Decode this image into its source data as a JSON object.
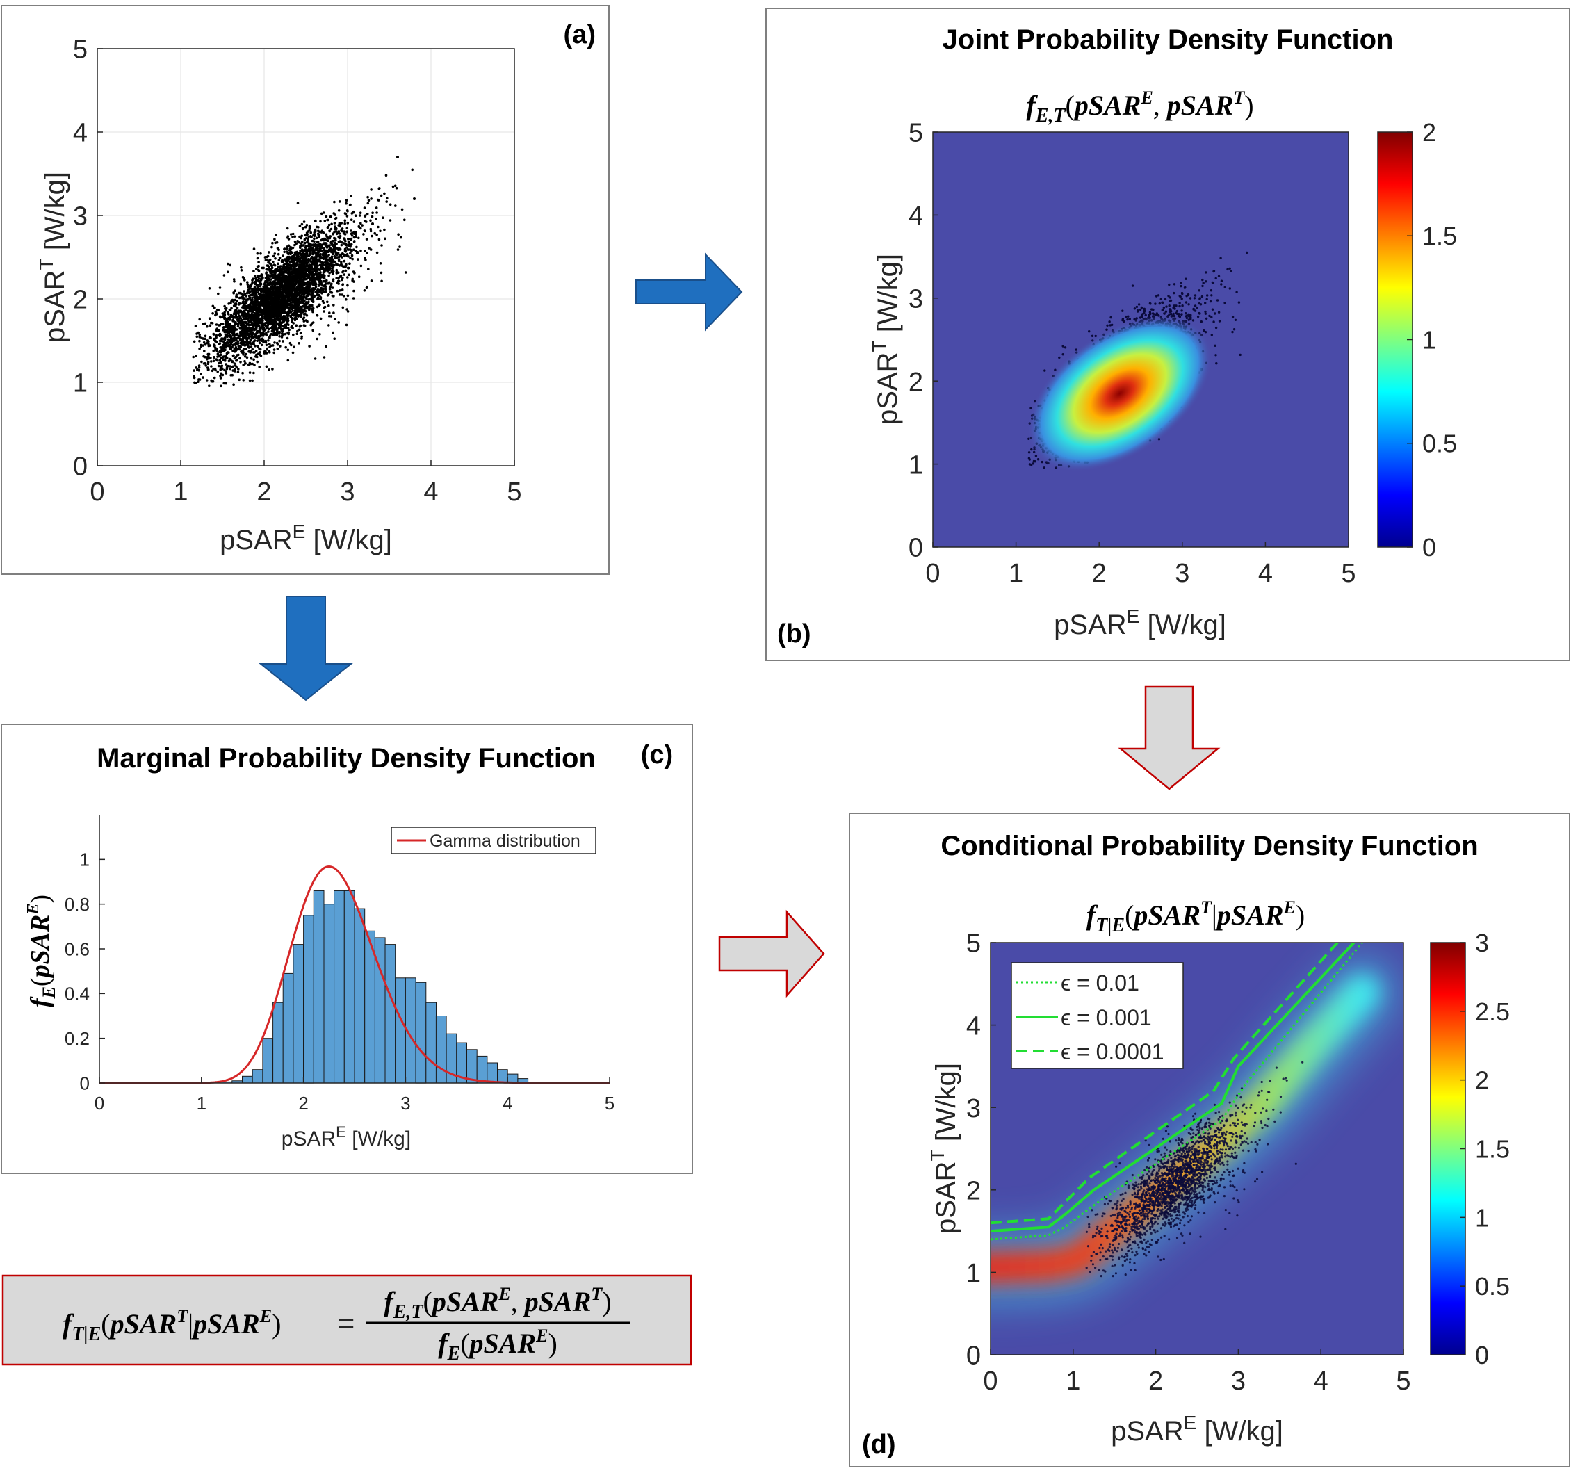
{
  "panel_a": {
    "label": "(a)",
    "xlabel_base": "pSAR",
    "xlabel_sup": "E",
    "xlabel_unit": " [W/kg]",
    "ylabel_base": "pSAR",
    "ylabel_sup": "T",
    "ylabel_unit": " [W/kg]"
  },
  "panel_b": {
    "label": "(b)",
    "title": "Joint Probability Density Function",
    "formula": {
      "f": "f",
      "sub": "E,T",
      "open": "(",
      "a": "pSAR",
      "asup": "E",
      "comma": ", ",
      "b": "pSAR",
      "bsup": "T",
      "close": ")"
    },
    "xlabel_base": "pSAR",
    "xlabel_sup": "E",
    "xlabel_unit": " [W/kg]",
    "ylabel_base": "pSAR",
    "ylabel_sup": "T",
    "ylabel_unit": " [W/kg]"
  },
  "panel_c": {
    "label": "(c)",
    "title": "Marginal Probability Density Function",
    "ylabel": {
      "f": "f",
      "sub": "E",
      "open": "(",
      "a": "pSAR",
      "asup": "E",
      "close": ")"
    },
    "xlabel_base": "pSAR",
    "xlabel_sup": "E",
    "xlabel_unit": " [W/kg]",
    "legend": "Gamma distribution"
  },
  "panel_d": {
    "label": "(d)",
    "title": "Conditional Probability Density Function",
    "formula": {
      "f": "f",
      "sub": "T|E",
      "open": "(",
      "a": "pSAR",
      "asup": "T",
      "bar": "|",
      "b": "pSAR",
      "bsup": "E",
      "close": ")"
    },
    "xlabel_base": "pSAR",
    "xlabel_sup": "E",
    "xlabel_unit": " [W/kg]",
    "ylabel_base": "pSAR",
    "ylabel_sup": "T",
    "ylabel_unit": " [W/kg]",
    "legend": [
      {
        "label": "ϵ = 0.01",
        "style": "dotted"
      },
      {
        "label": "ϵ = 0.001",
        "style": "solid"
      },
      {
        "label": "ϵ = 0.0001",
        "style": "dashed"
      }
    ]
  },
  "equation": {
    "lhs_f": "f",
    "lhs_sub": "T|E",
    "lhs_open": "(",
    "lhs_a": "pSAR",
    "lhs_asup": "T",
    "lhs_bar": "|",
    "lhs_b": "pSAR",
    "lhs_bsup": "E",
    "lhs_close": ")",
    "eq": "=",
    "num_f": "f",
    "num_sub": "E,T",
    "num_open": "(",
    "num_a": "pSAR",
    "num_asup": "E",
    "num_comma": ", ",
    "num_b": "pSAR",
    "num_bsup": "T",
    "num_close": ")",
    "den_f": "f",
    "den_sub": "E",
    "den_open": "(",
    "den_a": "pSAR",
    "den_asup": "E",
    "den_close": ")"
  },
  "colors": {
    "arrow_blue": "#1f6fbf",
    "arrow_gray": "#d9d9d9",
    "arrow_red_outline": "#c00000",
    "bar_fill": "#5a9fd4",
    "gamma_line": "#d62728",
    "contour_green": "#22dd33",
    "heatmap_bg": "#4a4ba8"
  },
  "chart_data": [
    {
      "id": "a",
      "type": "scatter",
      "title": "",
      "xlim": [
        0,
        5
      ],
      "ylim": [
        0,
        5
      ],
      "xticks": [
        0,
        1,
        2,
        3,
        4,
        5
      ],
      "yticks": [
        0,
        1,
        2,
        3,
        4,
        5
      ],
      "grid": true,
      "x": [
        2.1,
        1.8,
        2.5,
        2.3,
        1.6,
        2.0,
        2.9,
        3.3,
        3.6,
        1.4,
        2.7,
        3.1,
        3.8,
        1.2,
        2.2
      ],
      "y": [
        2.0,
        1.7,
        2.3,
        2.1,
        1.5,
        1.9,
        2.6,
        2.9,
        3.7,
        1.3,
        2.4,
        2.8,
        3.2,
        1.15,
        2.2
      ]
    },
    {
      "id": "b",
      "type": "heatmap",
      "xlim": [
        0,
        5
      ],
      "ylim": [
        0,
        5
      ],
      "xticks": [
        0,
        1,
        2,
        3,
        4,
        5
      ],
      "yticks": [
        0,
        1,
        2,
        3,
        4,
        5
      ],
      "colorbar_ticks": [
        0,
        0.5,
        1,
        1.5,
        2
      ],
      "colorbar_range": [
        0,
        2
      ],
      "peak": {
        "x": 2.05,
        "y": 1.85,
        "value": 2
      }
    },
    {
      "id": "c",
      "type": "bar",
      "xlim": [
        0,
        5
      ],
      "ylim": [
        0,
        1.2
      ],
      "xticks": [
        0,
        1,
        2,
        3,
        4,
        5
      ],
      "yticks": [
        0,
        0.2,
        0.4,
        0.6,
        0.8,
        1
      ],
      "bin_width": 0.1,
      "bin_start": 1.2,
      "values": [
        0.005,
        0.01,
        0.03,
        0.06,
        0.2,
        0.36,
        0.49,
        0.62,
        0.75,
        0.86,
        0.8,
        0.86,
        0.86,
        0.78,
        0.68,
        0.65,
        0.62,
        0.47,
        0.47,
        0.45,
        0.36,
        0.3,
        0.22,
        0.18,
        0.15,
        0.12,
        0.09,
        0.06,
        0.04,
        0.02
      ],
      "series": [
        {
          "name": "Gamma distribution",
          "shape": 31,
          "scale": 0.075
        }
      ]
    },
    {
      "id": "d",
      "type": "heatmap",
      "xlim": [
        0,
        5
      ],
      "ylim": [
        0,
        5
      ],
      "xticks": [
        0,
        1,
        2,
        3,
        4,
        5
      ],
      "yticks": [
        0,
        1,
        2,
        3,
        4,
        5
      ],
      "colorbar_ticks": [
        0,
        0.5,
        1,
        1.5,
        2,
        2.5,
        3
      ],
      "colorbar_range": [
        0,
        3
      ],
      "series": [
        {
          "name": "ϵ = 0.01",
          "style": "dotted",
          "x": [
            0,
            0.7,
            0.9,
            1.3,
            2.8,
            3.1,
            4.5
          ],
          "y": [
            1.4,
            1.45,
            1.55,
            1.85,
            2.85,
            3.3,
            5.0
          ]
        },
        {
          "name": "ϵ = 0.001",
          "style": "solid",
          "x": [
            0,
            0.7,
            0.9,
            1.25,
            2.8,
            3.0,
            4.4
          ],
          "y": [
            1.5,
            1.55,
            1.7,
            2.0,
            3.05,
            3.5,
            5.0
          ]
        },
        {
          "name": "ϵ = 0.0001",
          "style": "dashed",
          "x": [
            0,
            0.7,
            0.9,
            1.2,
            2.7,
            2.95,
            4.2
          ],
          "y": [
            1.6,
            1.65,
            1.85,
            2.15,
            3.2,
            3.6,
            5.0
          ]
        }
      ]
    }
  ]
}
